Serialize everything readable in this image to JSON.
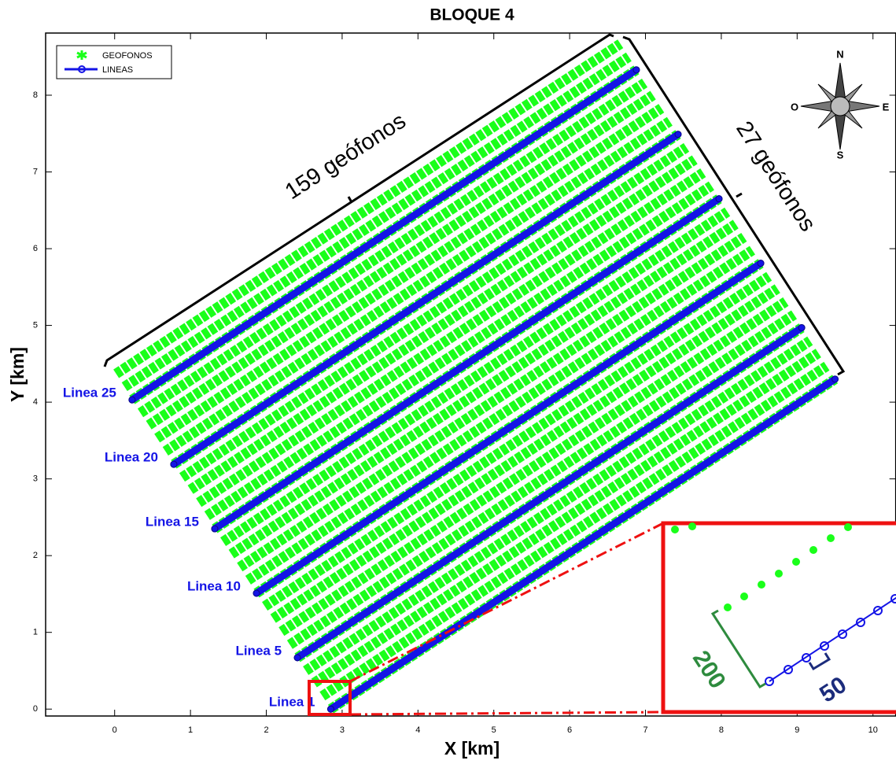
{
  "chart_data": {
    "type": "line",
    "title": "BLOQUE 4",
    "x_label": "X [km]",
    "y_label": "Y [km]",
    "xlim": [
      -0.91,
      10.3
    ],
    "ylim": [
      -0.09,
      8.81
    ],
    "xticks": [
      0,
      1,
      2,
      3,
      4,
      5,
      6,
      7,
      8,
      9,
      10
    ],
    "yticks": [
      0,
      1,
      2,
      3,
      4,
      5,
      6,
      7,
      8
    ],
    "legend": "top-left",
    "annotations": {
      "along": "159 geófonos",
      "across": "27 geófonos",
      "spacing_lines": "200",
      "spacing_geophones": "50"
    },
    "compass": {
      "n": "N",
      "s": "S",
      "e": "E",
      "o": "O"
    },
    "series": [
      {
        "name": "GEOFONOS",
        "color": "#1aff1a",
        "segments": [
          {
            "x": [
              2.85,
              9.5
            ],
            "y": [
              0,
              4.3
            ]
          },
          {
            "x": [
              2.74,
              9.39
            ],
            "y": [
              0.17,
              4.47
            ]
          },
          {
            "x": [
              2.63,
              9.28
            ],
            "y": [
              0.34,
              4.64
            ]
          },
          {
            "x": [
              2.52,
              9.17
            ],
            "y": [
              0.5,
              4.8
            ]
          },
          {
            "x": [
              2.41,
              9.06
            ],
            "y": [
              0.67,
              4.97
            ]
          },
          {
            "x": [
              2.31,
              8.96
            ],
            "y": [
              0.84,
              5.14
            ]
          },
          {
            "x": [
              2.2,
              8.85
            ],
            "y": [
              1.01,
              5.31
            ]
          },
          {
            "x": [
              2.09,
              8.74
            ],
            "y": [
              1.18,
              5.48
            ]
          },
          {
            "x": [
              1.98,
              8.63
            ],
            "y": [
              1.34,
              5.64
            ]
          },
          {
            "x": [
              1.87,
              8.52
            ],
            "y": [
              1.51,
              5.81
            ]
          },
          {
            "x": [
              1.76,
              8.41
            ],
            "y": [
              1.68,
              5.98
            ]
          },
          {
            "x": [
              1.65,
              8.3
            ],
            "y": [
              1.85,
              6.15
            ]
          },
          {
            "x": [
              1.54,
              8.19
            ],
            "y": [
              2.02,
              6.32
            ]
          },
          {
            "x": [
              1.43,
              8.08
            ],
            "y": [
              2.18,
              6.48
            ]
          },
          {
            "x": [
              1.32,
              7.97
            ],
            "y": [
              2.35,
              6.65
            ]
          },
          {
            "x": [
              1.22,
              7.87
            ],
            "y": [
              2.52,
              6.82
            ]
          },
          {
            "x": [
              1.11,
              7.76
            ],
            "y": [
              2.69,
              6.99
            ]
          },
          {
            "x": [
              1.0,
              7.65
            ],
            "y": [
              2.86,
              7.16
            ]
          },
          {
            "x": [
              0.89,
              7.54
            ],
            "y": [
              3.02,
              7.32
            ]
          },
          {
            "x": [
              0.78,
              7.43
            ],
            "y": [
              3.19,
              7.49
            ]
          },
          {
            "x": [
              0.67,
              7.32
            ],
            "y": [
              3.36,
              7.66
            ]
          },
          {
            "x": [
              0.56,
              7.21
            ],
            "y": [
              3.53,
              7.83
            ]
          },
          {
            "x": [
              0.45,
              7.1
            ],
            "y": [
              3.7,
              8.0
            ]
          },
          {
            "x": [
              0.34,
              6.99
            ],
            "y": [
              3.86,
              8.16
            ]
          },
          {
            "x": [
              0.23,
              6.88
            ],
            "y": [
              4.03,
              8.33
            ]
          },
          {
            "x": [
              0.13,
              6.78
            ],
            "y": [
              4.2,
              8.5
            ]
          },
          {
            "x": [
              0.02,
              6.67
            ],
            "y": [
              4.37,
              8.67
            ]
          }
        ]
      },
      {
        "name": "LINEAS",
        "color": "#1414e6",
        "segments": [
          {
            "label": "Linea 1",
            "x": [
              2.85,
              9.5
            ],
            "y": [
              0,
              4.3
            ]
          },
          {
            "label": "Linea 5",
            "x": [
              2.41,
              9.06
            ],
            "y": [
              0.67,
              4.97
            ]
          },
          {
            "label": "Linea 10",
            "x": [
              1.87,
              8.52
            ],
            "y": [
              1.51,
              5.81
            ]
          },
          {
            "label": "Linea 15",
            "x": [
              1.32,
              7.97
            ],
            "y": [
              2.35,
              6.65
            ]
          },
          {
            "label": "Linea 20",
            "x": [
              0.78,
              7.43
            ],
            "y": [
              3.19,
              7.49
            ]
          },
          {
            "label": "Linea 25",
            "x": [
              0.23,
              6.88
            ],
            "y": [
              4.03,
              8.33
            ]
          }
        ]
      }
    ]
  }
}
